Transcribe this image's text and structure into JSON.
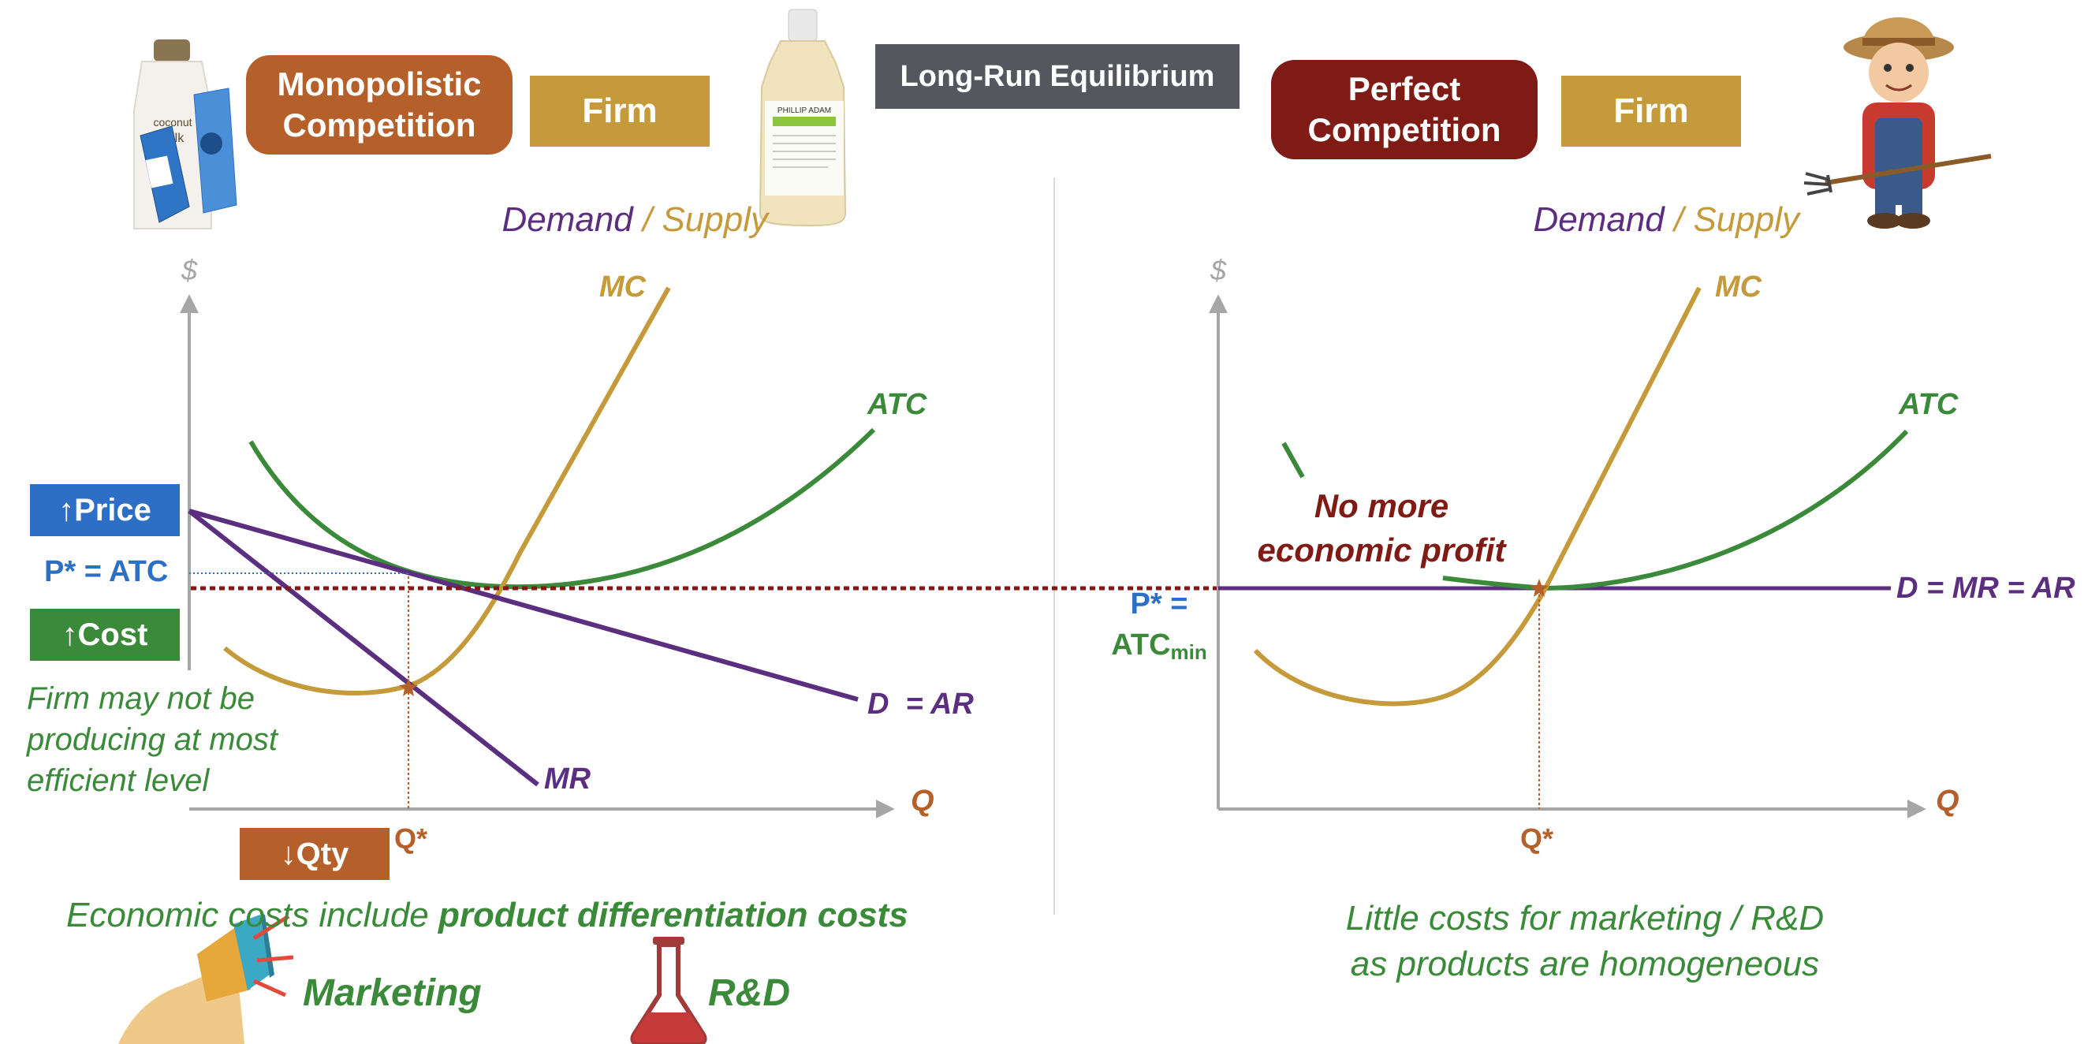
{
  "header": {
    "title": "Long-Run Equilibrium"
  },
  "left_panel": {
    "market_label_line1": "Monopolistic",
    "market_label_line2": "Competition",
    "firm_label": "Firm",
    "demand_word": "Demand",
    "slash": " / ",
    "supply_word": "Supply",
    "y_axis_label": "$",
    "x_axis_label": "Q",
    "mc_label": "MC",
    "atc_label": "ATC",
    "d_label": "D  = AR",
    "mr_label": "MR",
    "price_box": "↑Price",
    "p_atc_label": "P* = ATC",
    "cost_box": "↑Cost",
    "note_line1": "Firm may not be",
    "note_line2": "producing at most",
    "note_line3": "efficient level",
    "q_star": "Q*",
    "qty_box": "↓Qty",
    "costs_prefix": "Economic costs include ",
    "costs_bold": "product differentiation costs",
    "marketing_label": "Marketing",
    "rd_label": "R&D",
    "product_bottle_1_line1": "coconut",
    "product_bottle_1_line2": "milk",
    "product_bottle_2": "PHILLIP ADAM"
  },
  "right_panel": {
    "market_label_line1": "Perfect",
    "market_label_line2": "Competition",
    "firm_label": "Firm",
    "demand_word": "Demand",
    "slash": " / ",
    "supply_word": "Supply",
    "y_axis_label": "$",
    "x_axis_label": "Q",
    "mc_label": "MC",
    "atc_label": "ATC",
    "demand_label": "D = MR = AR",
    "profit_line1": "No more",
    "profit_line2": "economic profit",
    "p_star_label": "P* =",
    "atc_min_main": "ATC",
    "atc_min_sub": "min",
    "q_star": "Q*",
    "note_line1": "Little costs for marketing / R&D",
    "note_line2": "as products are homogeneous"
  },
  "colors": {
    "monopolistic_box": "#B5602A",
    "firm_box": "#C49A3A",
    "title_box": "#54585E",
    "perfect_box": "#7F1A14",
    "price_box": "#2E6FC6",
    "cost_box": "#3A8A3A",
    "qty_box": "#B5602A",
    "purple": "#5B2E80",
    "gold": "#C49A3A",
    "green": "#3A8A3A",
    "dark_red": "#7F1A14",
    "blue": "#2E6FC6",
    "orange": "#B5602A",
    "axis_gray": "#A6A6A6"
  },
  "icons": {
    "megaphone": "megaphone-icon",
    "flask": "flask-icon",
    "farmer": "farmer-illustration",
    "bottles": "shampoo-bottles-illustration"
  }
}
